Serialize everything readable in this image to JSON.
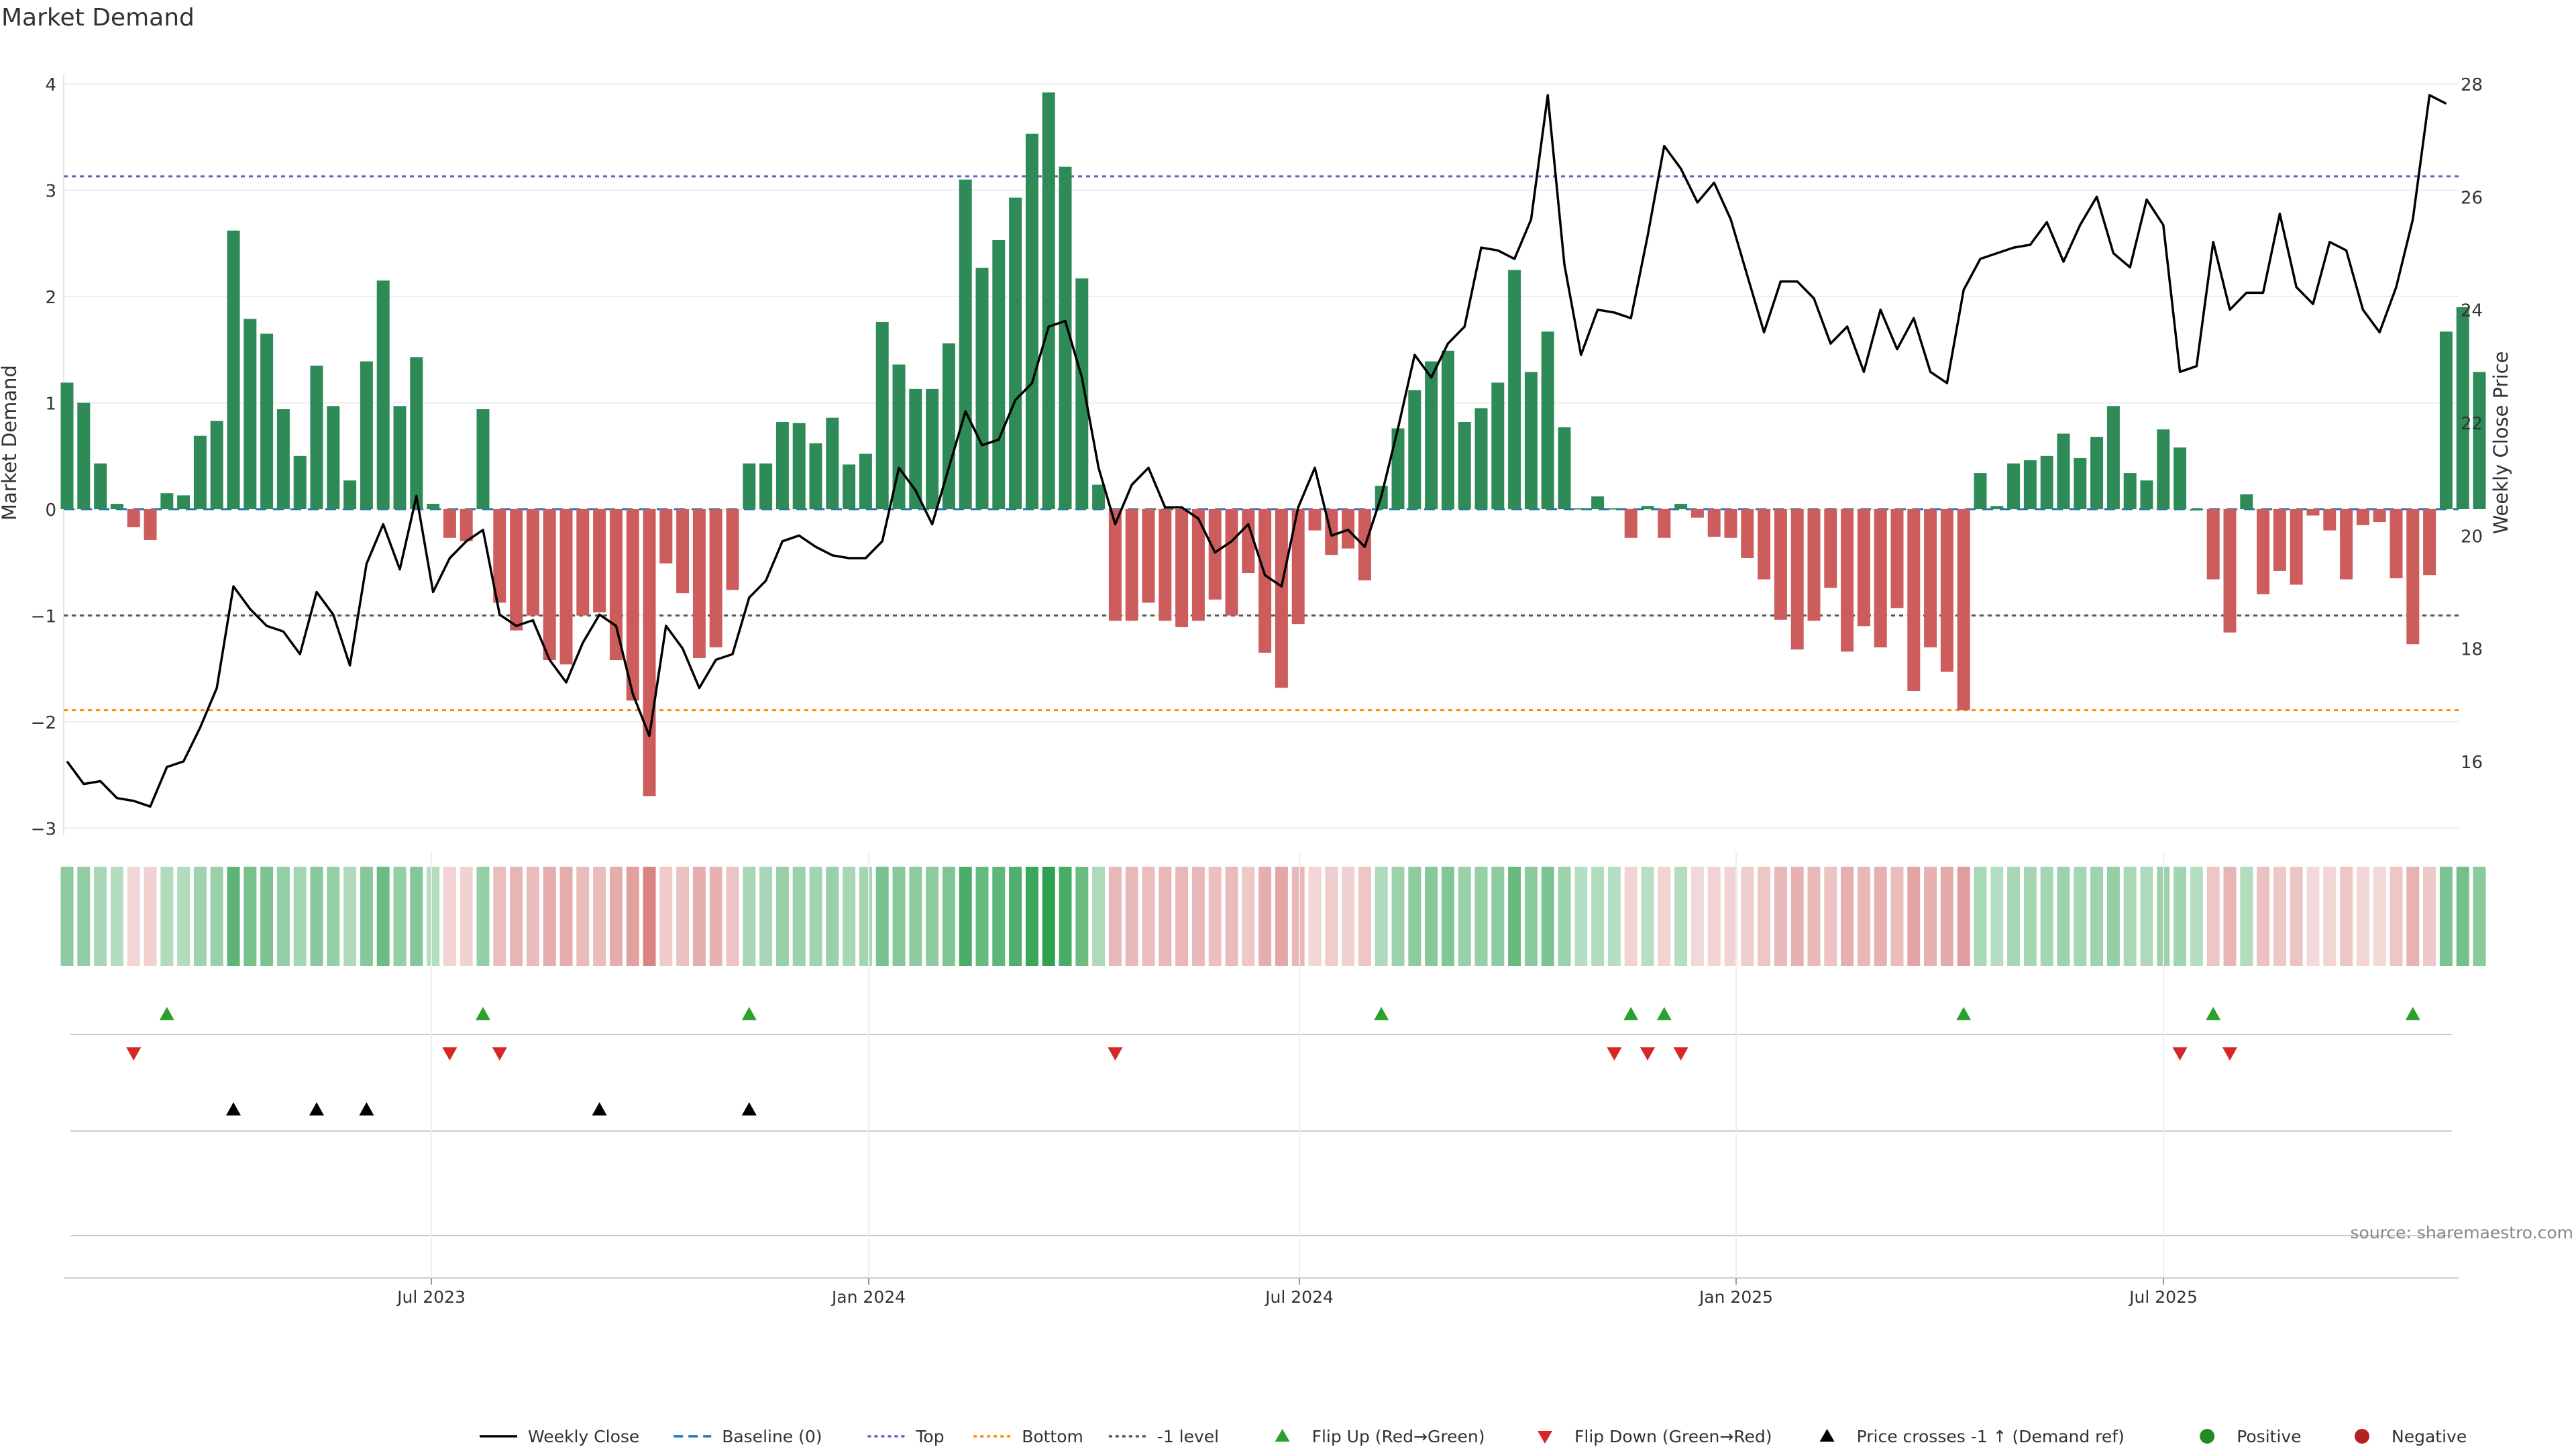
{
  "title": "Market Demand",
  "source": "source: sharemaestro.com",
  "colors": {
    "positive": "#2e8b57",
    "negative": "#cd5c5c",
    "line": "#000000",
    "baseline": "#1f77b4",
    "top": "#6a5acd",
    "bottom": "#ff8c00",
    "minus1": "#555555",
    "flip_up": "#2ca02c",
    "flip_down": "#d62728",
    "cross": "#000000",
    "dot_pos": "#228b22",
    "dot_neg": "#b22222"
  },
  "legend": [
    {
      "label": "Weekly Close",
      "kind": "line",
      "color": "#000000"
    },
    {
      "label": "Baseline (0)",
      "kind": "dash",
      "color": "#1f77b4"
    },
    {
      "label": "Top",
      "kind": "dot",
      "color": "#6a5acd"
    },
    {
      "label": "Bottom",
      "kind": "dot",
      "color": "#ff8c00"
    },
    {
      "label": "-1 level",
      "kind": "dot",
      "color": "#555555"
    },
    {
      "label": "Flip Up (Red→Green)",
      "kind": "tri-up",
      "color": "#2ca02c"
    },
    {
      "label": "Flip Down (Green→Red)",
      "kind": "tri-down",
      "color": "#d62728"
    },
    {
      "label": "Price crosses -1 ↑ (Demand ref)",
      "kind": "tri-up",
      "color": "#000000"
    },
    {
      "label": "Positive",
      "kind": "circle",
      "color": "#228b22"
    },
    {
      "label": "Negative",
      "kind": "circle",
      "color": "#b22222"
    }
  ],
  "chart_data": {
    "type": "bar",
    "title": "Market Demand",
    "frequency": "weekly",
    "x_tick_labels": [
      "Jul 2023",
      "Jan 2024",
      "Jul 2024",
      "Jan 2025",
      "Jul 2025"
    ],
    "ylabel": "Market Demand",
    "y2label": "Weekly Close Price",
    "ylim": [
      -3.2,
      4.1
    ],
    "y_ticks": [
      4,
      3,
      2,
      1,
      0,
      -1,
      -2,
      -3
    ],
    "y2lim": [
      15,
      28.2
    ],
    "y2_ticks": [
      28,
      26,
      24,
      22,
      20,
      18,
      16
    ],
    "levels": {
      "baseline": 0,
      "top": 3.13,
      "bottom": -1.89,
      "minus1": -1.0
    },
    "demand": [
      1.19,
      1.0,
      0.43,
      0.05,
      -0.17,
      -0.29,
      0.15,
      0.13,
      0.69,
      0.83,
      2.62,
      1.79,
      1.65,
      0.94,
      0.5,
      1.35,
      0.97,
      0.27,
      1.39,
      2.15,
      0.97,
      1.43,
      0.05,
      -0.27,
      -0.3,
      0.94,
      -0.88,
      -1.14,
      -1.0,
      -1.42,
      -1.46,
      -1.0,
      -0.97,
      -1.42,
      -1.8,
      -2.7,
      -0.51,
      -0.79,
      -1.4,
      -1.3,
      -0.76,
      0.43,
      0.43,
      0.82,
      0.81,
      0.62,
      0.86,
      0.42,
      0.52,
      1.76,
      1.36,
      1.13,
      1.13,
      1.56,
      3.1,
      2.27,
      2.53,
      2.93,
      3.53,
      3.92,
      3.22,
      2.17,
      0.23,
      -1.05,
      -1.05,
      -0.88,
      -1.05,
      -1.11,
      -1.05,
      -0.85,
      -1.0,
      -0.6,
      -1.35,
      -1.68,
      -1.08,
      -0.2,
      -0.43,
      -0.37,
      -0.67,
      0.22,
      0.76,
      1.12,
      1.39,
      1.49,
      0.82,
      0.95,
      1.19,
      2.25,
      1.29,
      1.67,
      0.77,
      0.01,
      0.12,
      0.01,
      -0.27,
      0.03,
      -0.27,
      0.05,
      -0.08,
      -0.26,
      -0.27,
      -0.46,
      -0.66,
      -1.04,
      -1.32,
      -1.05,
      -0.74,
      -1.34,
      -1.1,
      -1.3,
      -0.93,
      -1.71,
      -1.3,
      -1.53,
      -1.89,
      0.34,
      0.03,
      0.43,
      0.46,
      0.5,
      0.71,
      0.48,
      0.68,
      0.97,
      0.34,
      0.27,
      0.75,
      0.58,
      0.0,
      -0.66,
      -1.16,
      0.14,
      -0.8,
      -0.58,
      -0.71,
      -0.06,
      -0.2,
      -0.66,
      -0.15,
      -0.12,
      -0.65,
      -1.27,
      -0.62,
      1.67,
      1.9,
      1.29
    ],
    "weekly_close": [
      16.0,
      15.6,
      15.65,
      15.35,
      15.3,
      15.2,
      15.9,
      16.0,
      16.6,
      17.3,
      19.1,
      18.7,
      18.4,
      18.3,
      17.9,
      19.0,
      18.6,
      17.7,
      19.5,
      20.2,
      19.4,
      20.7,
      19.0,
      19.6,
      19.9,
      20.1,
      18.6,
      18.4,
      18.5,
      17.8,
      17.4,
      18.1,
      18.6,
      18.4,
      17.2,
      16.45,
      18.4,
      18.0,
      17.3,
      17.8,
      17.9,
      18.9,
      19.2,
      19.9,
      20.0,
      19.8,
      19.65,
      19.6,
      19.6,
      19.9,
      21.2,
      20.8,
      20.2,
      21.2,
      22.2,
      21.6,
      21.7,
      22.4,
      22.7,
      23.7,
      23.8,
      22.8,
      21.2,
      20.2,
      20.9,
      21.2,
      20.5,
      20.5,
      20.3,
      19.7,
      19.9,
      20.2,
      19.3,
      19.1,
      20.5,
      21.2,
      20.0,
      20.1,
      19.8,
      20.7,
      21.9,
      23.2,
      22.8,
      23.4,
      23.7,
      25.1,
      25.05,
      24.9,
      25.6,
      27.8,
      24.8,
      23.2,
      24.0,
      23.95,
      23.85,
      25.3,
      26.9,
      26.5,
      25.9,
      26.25,
      25.6,
      24.6,
      23.6,
      24.5,
      24.5,
      24.2,
      23.4,
      23.7,
      22.9,
      24.0,
      23.3,
      23.85,
      22.9,
      22.7,
      24.35,
      24.9,
      25.0,
      25.1,
      25.15,
      25.55,
      24.85,
      25.5,
      26.0,
      25.0,
      24.75,
      25.95,
      25.5,
      22.9,
      23.0,
      25.2,
      24.0,
      24.3,
      24.3,
      25.7,
      24.4,
      24.1,
      25.2,
      25.05,
      24.0,
      23.6,
      24.4,
      25.6,
      27.8,
      27.65
    ],
    "heat_strip": "demand intensity per week (green = positive, red = negative)",
    "events": {
      "flip_up_index": [
        6,
        25,
        41,
        79,
        94,
        96,
        114,
        129,
        141
      ],
      "flip_down_index": [
        4,
        23,
        26,
        63,
        93,
        95,
        97,
        127,
        130
      ],
      "price_cross_minus1_up_index": [
        10,
        15,
        18,
        32,
        41
      ]
    }
  }
}
